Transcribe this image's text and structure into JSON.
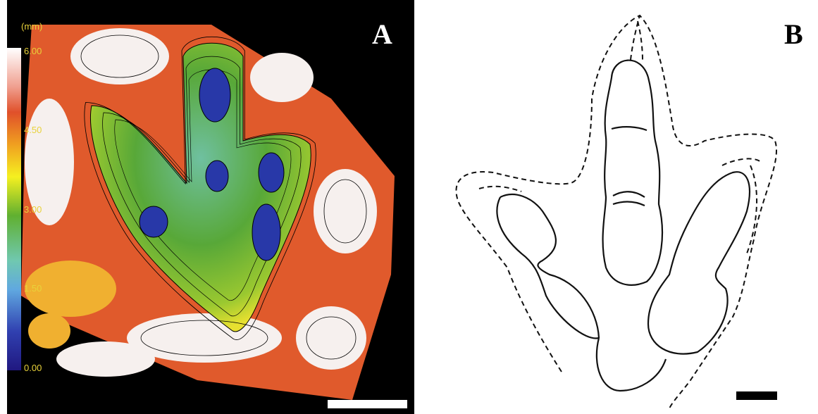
{
  "panel_a": {
    "label": "A",
    "colorbar": {
      "unit": "(mm)",
      "ticks": [
        "6.00",
        "4.50",
        "3.00",
        "1.50",
        "0.00"
      ]
    }
  },
  "panel_b": {
    "label": "B"
  }
}
